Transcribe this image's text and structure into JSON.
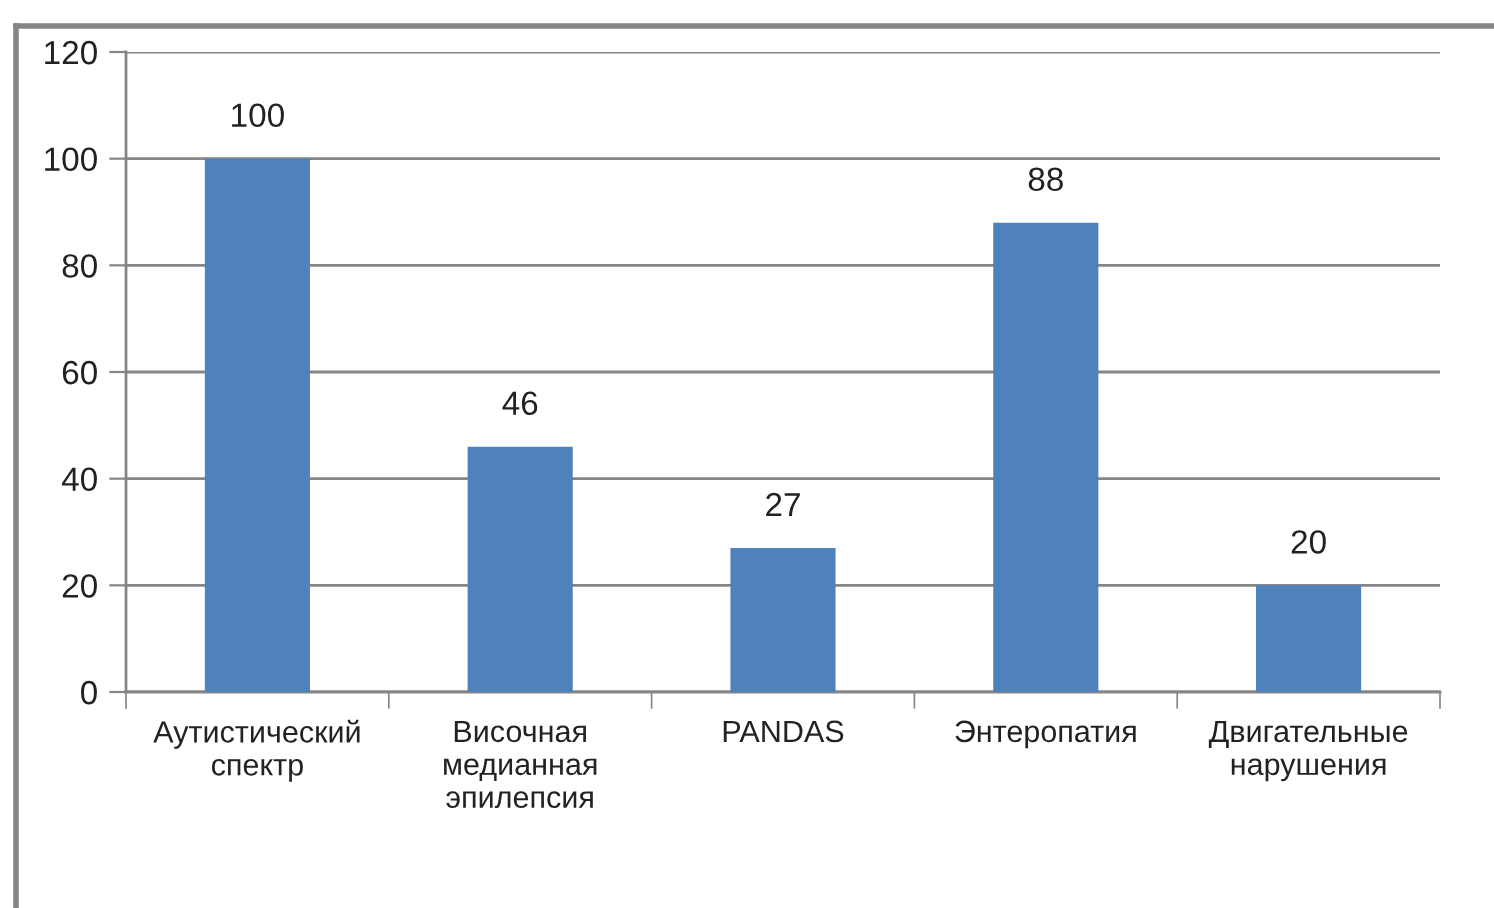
{
  "chart_data": {
    "type": "bar",
    "categories": [
      "Аутистический\nспектр",
      "Височная\nмедианная\nэпилепсия",
      "PANDAS",
      "Энтеропатия",
      "Двигательные\nнарушения"
    ],
    "values": [
      100,
      46,
      27,
      88,
      20
    ],
    "color": "#4f81bd",
    "ylim": [
      0,
      120
    ],
    "yticks": [
      0,
      20,
      40,
      60,
      80,
      100,
      120
    ],
    "grid": "y",
    "data_labels": true,
    "legend": false
  }
}
